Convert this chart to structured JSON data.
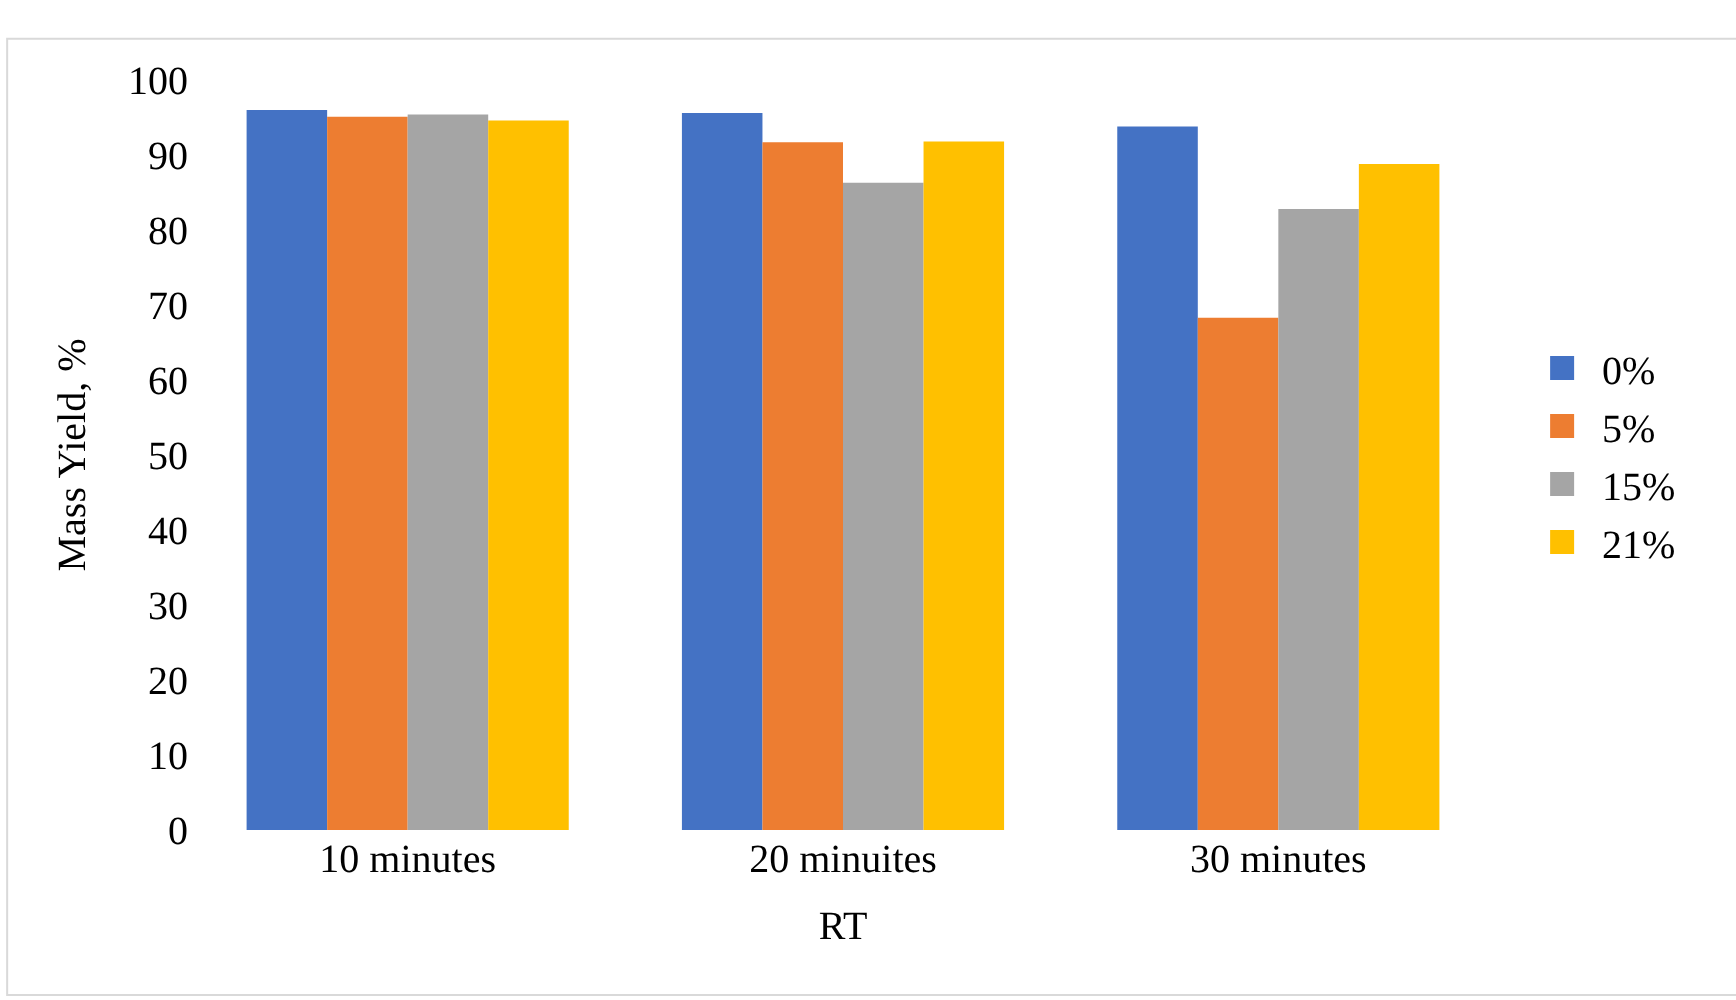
{
  "chart_data": {
    "type": "bar",
    "xlabel": "RT",
    "ylabel": "Mass Yield, %",
    "categories": [
      "10 minutes",
      "20 minuites",
      "30 minutes"
    ],
    "series": [
      {
        "name": "0%",
        "color": "#4472c4",
        "values": [
          96,
          95.6,
          93.8
        ]
      },
      {
        "name": "5%",
        "color": "#ed7d31",
        "values": [
          95.1,
          91.7,
          68.3
        ]
      },
      {
        "name": "15%",
        "color": "#a5a5a5",
        "values": [
          95.4,
          86.3,
          82.8
        ]
      },
      {
        "name": "21%",
        "color": "#ffc000",
        "values": [
          94.6,
          91.8,
          88.8
        ]
      }
    ],
    "ylim": [
      0,
      100
    ],
    "yticks": [
      0,
      10,
      20,
      30,
      40,
      50,
      60,
      70,
      80,
      90,
      100
    ],
    "legend": "right"
  }
}
